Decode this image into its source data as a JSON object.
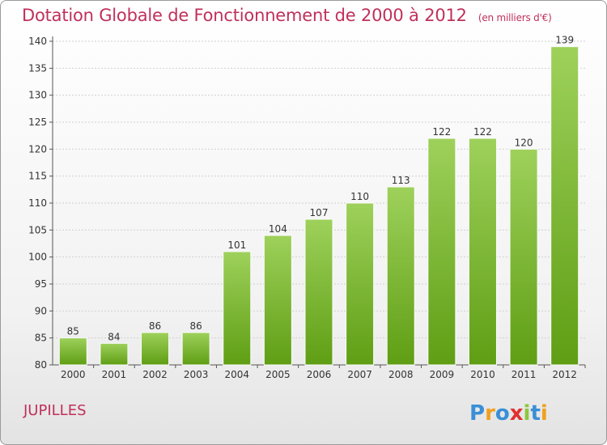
{
  "header": {
    "title": "Dotation Globale de Fonctionnement de 2000 à 2012",
    "unit": "(en milliers d'€)"
  },
  "footer": {
    "commune": "JUPILLES",
    "logo_text": "Proxiti"
  },
  "colors": {
    "title": "#c0305a",
    "bar_top": "#9ed15b",
    "bar_bottom": "#5f9e14",
    "grid": "#d0d0d0"
  },
  "chart_data": {
    "type": "bar",
    "title": "Dotation Globale de Fonctionnement de 2000 à 2012",
    "categories": [
      "2000",
      "2001",
      "2002",
      "2003",
      "2004",
      "2005",
      "2006",
      "2007",
      "2008",
      "2009",
      "2010",
      "2011",
      "2012"
    ],
    "values": [
      85,
      84,
      86,
      86,
      101,
      104,
      107,
      110,
      113,
      122,
      122,
      120,
      139
    ],
    "ylim": [
      80,
      140
    ],
    "yticks": [
      80,
      85,
      90,
      95,
      100,
      105,
      110,
      115,
      120,
      125,
      130,
      135,
      140
    ],
    "grid": true
  }
}
